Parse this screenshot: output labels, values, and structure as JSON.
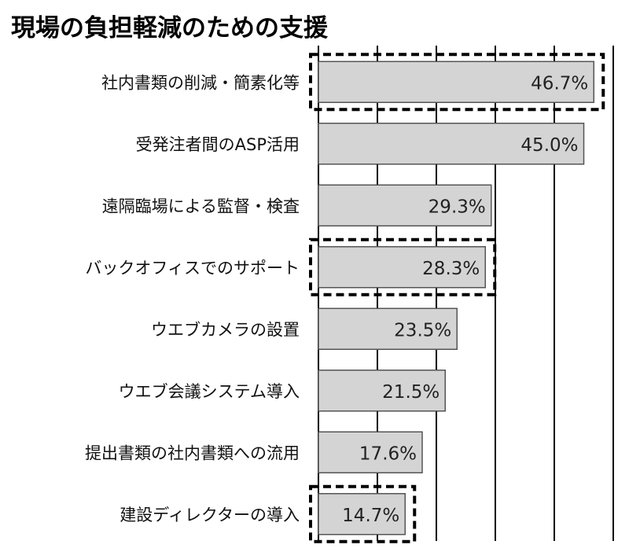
{
  "chart_data": {
    "type": "bar",
    "orientation": "horizontal",
    "title": "現場の負担軽減のための支援",
    "categories": [
      "社内書類の削減・簡素化等",
      "受発注者間のASP活用",
      "遠隔臨場による監督・検査",
      "バックオフィスでのサポート",
      "ウエブカメラの設置",
      "ウエブ会議システム導入",
      "提出書類の社内書類への流用",
      "建設ディレクターの導入"
    ],
    "values": [
      46.7,
      45.0,
      29.3,
      28.3,
      23.5,
      21.5,
      17.6,
      14.7
    ],
    "value_labels": [
      "46.7%",
      "45.0%",
      "29.3%",
      "28.3%",
      "23.5%",
      "21.5%",
      "17.6%",
      "14.7%"
    ],
    "highlighted": [
      true,
      false,
      false,
      true,
      false,
      false,
      false,
      true
    ],
    "xlim": [
      0,
      50
    ],
    "grid": true,
    "colors": {
      "bar": "#d4d4d4",
      "bar_stroke": "#555555",
      "grid": "#000000",
      "highlight": "#000000"
    }
  }
}
